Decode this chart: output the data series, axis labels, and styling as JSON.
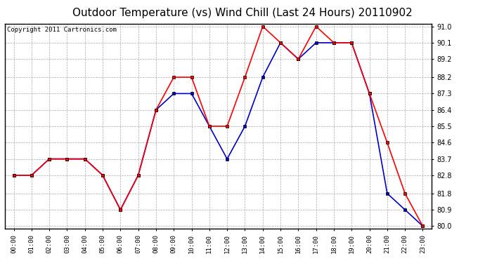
{
  "title": "Outdoor Temperature (vs) Wind Chill (Last 24 Hours) 20110902",
  "copyright": "Copyright 2011 Cartronics.com",
  "hours": [
    "00:00",
    "01:00",
    "02:00",
    "03:00",
    "04:00",
    "05:00",
    "06:00",
    "07:00",
    "08:00",
    "09:00",
    "10:00",
    "11:00",
    "12:00",
    "13:00",
    "14:00",
    "15:00",
    "16:00",
    "17:00",
    "18:00",
    "19:00",
    "20:00",
    "21:00",
    "22:00",
    "23:00"
  ],
  "temp": [
    82.8,
    82.8,
    83.7,
    83.7,
    83.7,
    82.8,
    80.9,
    82.8,
    86.4,
    88.2,
    88.2,
    85.5,
    85.5,
    88.2,
    91.0,
    90.1,
    89.2,
    91.0,
    90.1,
    90.1,
    87.3,
    84.6,
    81.8,
    80.0
  ],
  "windchill": [
    82.8,
    82.8,
    83.7,
    83.7,
    83.7,
    82.8,
    80.9,
    82.8,
    86.4,
    87.3,
    87.3,
    85.5,
    83.7,
    85.5,
    88.2,
    90.1,
    89.2,
    90.1,
    90.1,
    90.1,
    87.3,
    81.8,
    80.9,
    80.0
  ],
  "temp_color": "#ff0000",
  "windchill_color": "#0000cc",
  "ylim_min": 80.0,
  "ylim_max": 91.0,
  "yticks": [
    80.0,
    80.9,
    81.8,
    82.8,
    83.7,
    84.6,
    85.5,
    86.4,
    87.3,
    88.2,
    89.2,
    90.1,
    91.0
  ],
  "bg_color": "#ffffff",
  "grid_color": "#aaaaaa",
  "title_fontsize": 11,
  "copyright_fontsize": 6.5,
  "marker": "s",
  "markersize": 3.0
}
